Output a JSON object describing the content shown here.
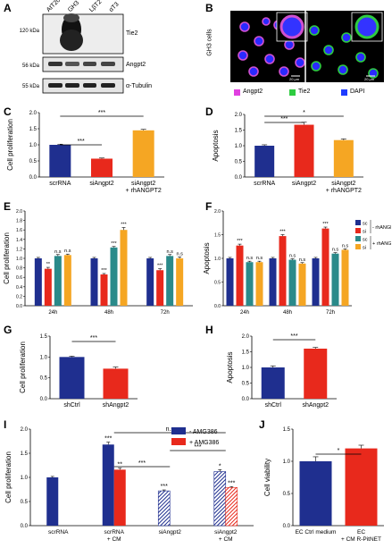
{
  "panels": {
    "A": {
      "letter": "A",
      "lanes": [
        "AtT20",
        "GH3",
        "LβT2",
        "αT3"
      ],
      "rows": [
        {
          "mw": "120 kDa",
          "protein": "Tie2"
        },
        {
          "mw": "56 kDa",
          "protein": "Angpt2"
        },
        {
          "mw": "55 kDa",
          "protein": "α-Tubulin"
        }
      ]
    },
    "B": {
      "letter": "B",
      "side_label": "GH3 cells",
      "scalebars": [
        "20 μm",
        "20 μm"
      ],
      "legend": [
        {
          "label": "Angpt2",
          "color": "#e040e0"
        },
        {
          "label": "Tie2",
          "color": "#2ecc40"
        },
        {
          "label": "DAPI",
          "color": "#1f3cff"
        }
      ]
    },
    "C": {
      "letter": "C"
    },
    "D": {
      "letter": "D"
    },
    "E": {
      "letter": "E"
    },
    "F": {
      "letter": "F"
    },
    "G": {
      "letter": "G"
    },
    "H": {
      "letter": "H"
    },
    "I": {
      "letter": "I"
    },
    "J": {
      "letter": "J"
    }
  },
  "chart_data": [
    {
      "id": "C",
      "type": "bar",
      "ylabel": "Cell proliferation",
      "ylim": [
        0,
        2.0
      ],
      "yticks": [
        "0.0",
        "0.5",
        "1.0",
        "1.5",
        "2.0"
      ],
      "categories": [
        "scrRNA",
        "siAngpt2",
        "siAngpt2 + rhANGPT2"
      ],
      "values": [
        1.0,
        0.57,
        1.45
      ],
      "errors": [
        0.02,
        0.02,
        0.03
      ],
      "colors": [
        "#1f2f8f",
        "#e8291c",
        "#f5a623"
      ],
      "significance": [
        {
          "from": 0,
          "to": 1,
          "label": "***"
        },
        {
          "from": 0,
          "to": 2,
          "label": "***"
        }
      ]
    },
    {
      "id": "D",
      "type": "bar",
      "ylabel": "Apoptosis",
      "ylim": [
        0,
        2.0
      ],
      "yticks": [
        "0.0",
        "0.5",
        "1.0",
        "1.5",
        "2.0"
      ],
      "categories": [
        "scrRNA",
        "siAngpt2",
        "siAngpt2 + rhANGPT2"
      ],
      "values": [
        1.0,
        1.67,
        1.18
      ],
      "errors": [
        0.03,
        0.08,
        0.04
      ],
      "colors": [
        "#1f2f8f",
        "#e8291c",
        "#f5a623"
      ],
      "significance": [
        {
          "from": 0,
          "to": 1,
          "label": "***"
        },
        {
          "from": 0,
          "to": 2,
          "label": "*"
        }
      ]
    },
    {
      "id": "E",
      "type": "bar",
      "ylabel": "Cell proliferation",
      "ylim": [
        0,
        2.0
      ],
      "yticks": [
        "0.0",
        "0.2",
        "0.4",
        "0.6",
        "0.8",
        "1.0",
        "1.2",
        "1.4",
        "1.6",
        "1.8",
        "2.0"
      ],
      "categories": [
        "24h",
        "48h",
        "72h"
      ],
      "series": [
        {
          "name": "sc",
          "values": [
            1.0,
            1.0,
            1.0
          ],
          "errors": [
            0.02,
            0.02,
            0.02
          ],
          "labels": [
            "",
            "",
            ""
          ]
        },
        {
          "name": "si",
          "values": [
            0.78,
            0.66,
            0.75
          ],
          "errors": [
            0.03,
            0.02,
            0.03
          ],
          "labels": [
            "**",
            "***",
            "***"
          ]
        },
        {
          "name": "sc",
          "values": [
            1.05,
            1.23,
            1.05
          ],
          "errors": [
            0.03,
            0.02,
            0.03
          ],
          "labels": [
            "n.s",
            "***",
            "n.s"
          ]
        },
        {
          "name": "si",
          "values": [
            1.07,
            1.6,
            1.0
          ],
          "errors": [
            0.02,
            0.05,
            0.03
          ],
          "labels": [
            "n.s",
            "***",
            "n.s"
          ]
        }
      ],
      "colors": [
        "#1f2f8f",
        "#e8291c",
        "#2a8a8a",
        "#f5a623"
      ]
    },
    {
      "id": "F",
      "type": "bar",
      "ylabel": "Apoptosis",
      "ylim": [
        0,
        2.0
      ],
      "yticks": [
        "0.0",
        "0.5",
        "1.0",
        "1.5",
        "2.0"
      ],
      "categories": [
        "24h",
        "48h",
        "72h"
      ],
      "series": [
        {
          "name": "sc",
          "values": [
            1.0,
            1.0,
            1.0
          ],
          "errors": [
            0.02,
            0.02,
            0.02
          ],
          "labels": [
            "",
            "",
            ""
          ]
        },
        {
          "name": "si",
          "values": [
            1.27,
            1.47,
            1.63
          ],
          "errors": [
            0.03,
            0.03,
            0.03
          ],
          "labels": [
            "***",
            "***",
            "***"
          ]
        },
        {
          "name": "sc",
          "values": [
            0.92,
            0.97,
            1.1
          ],
          "errors": [
            0.02,
            0.02,
            0.02
          ],
          "labels": [
            "n.s",
            "n.s",
            "n.s"
          ]
        },
        {
          "name": "si",
          "values": [
            0.92,
            0.89,
            1.18
          ],
          "errors": [
            0.02,
            0.02,
            0.02
          ],
          "labels": [
            "n.s",
            "n.s",
            "n.s"
          ]
        }
      ],
      "colors": [
        "#1f2f8f",
        "#e8291c",
        "#2a8a8a",
        "#f5a623"
      ],
      "legend": [
        {
          "label": "sc",
          "color": "#1f2f8f"
        },
        {
          "label": "si",
          "color": "#e8291c"
        },
        {
          "label": "sc",
          "color": "#2a8a8a"
        },
        {
          "label": "si",
          "color": "#f5a623"
        }
      ],
      "legend_groups": [
        "- rhANGPT2",
        "+ rhANGPT2"
      ]
    },
    {
      "id": "G",
      "type": "bar",
      "ylabel": "Cell proliferation",
      "ylim": [
        0,
        1.5
      ],
      "yticks": [
        "0.0",
        "0.5",
        "1.0",
        "1.5"
      ],
      "categories": [
        "shCtrl",
        "shAngpt2"
      ],
      "values": [
        1.0,
        0.72
      ],
      "errors": [
        0.02,
        0.04
      ],
      "colors": [
        "#1f2f8f",
        "#e8291c"
      ],
      "significance": [
        {
          "from": 0,
          "to": 1,
          "label": "***"
        }
      ]
    },
    {
      "id": "H",
      "type": "bar",
      "ylabel": "Apoptosis",
      "ylim": [
        0,
        2.0
      ],
      "yticks": [
        "0.0",
        "0.5",
        "1.0",
        "1.5",
        "2.0"
      ],
      "categories": [
        "shCtrl",
        "shAngpt2"
      ],
      "values": [
        1.0,
        1.6
      ],
      "errors": [
        0.05,
        0.04
      ],
      "colors": [
        "#1f2f8f",
        "#e8291c"
      ],
      "significance": [
        {
          "from": 0,
          "to": 1,
          "label": "***"
        }
      ]
    },
    {
      "id": "I",
      "type": "bar",
      "ylabel": "Cell proliferation",
      "ylim": [
        0,
        2.0
      ],
      "yticks": [
        "0.0",
        "0.5",
        "1.0",
        "1.5",
        "2.0"
      ],
      "categories": [
        "scrRNA",
        "scrRNA + CM",
        "siAngpt2",
        "siAngpt2 + CM"
      ],
      "series": [
        {
          "name": "- AMG386",
          "values": [
            1.0,
            1.68,
            0.72,
            1.12
          ],
          "errors": [
            0.02,
            0.05,
            0.02,
            0.04
          ],
          "labels": [
            "",
            "***",
            "***",
            "*"
          ]
        },
        {
          "name": "+ AMG386",
          "values": [
            null,
            1.16,
            null,
            0.79
          ],
          "errors": [
            null,
            0.03,
            null,
            0.02
          ],
          "labels": [
            "",
            "**",
            "",
            "***"
          ]
        }
      ],
      "hatched_categories": [
        2,
        3
      ],
      "colors": [
        "#1f2f8f",
        "#e8291c"
      ],
      "significance": [
        {
          "from": 1,
          "to": 2,
          "label": "***"
        },
        {
          "from": 2,
          "to": 3,
          "label": "***"
        },
        {
          "from": 1,
          "to": 3,
          "label": "n.s"
        }
      ]
    },
    {
      "id": "J",
      "type": "bar",
      "ylabel": "Cell viability",
      "ylim": [
        0,
        1.5
      ],
      "yticks": [
        "0.0",
        "0.5",
        "1.0",
        "1.5"
      ],
      "categories": [
        "EC Ctrl medium",
        "EC + CM R-PitNET"
      ],
      "values": [
        1.0,
        1.2
      ],
      "errors": [
        0.07,
        0.05
      ],
      "colors": [
        "#1f2f8f",
        "#e8291c"
      ],
      "significance": [
        {
          "from": 0,
          "to": 1,
          "label": "*"
        }
      ]
    }
  ]
}
